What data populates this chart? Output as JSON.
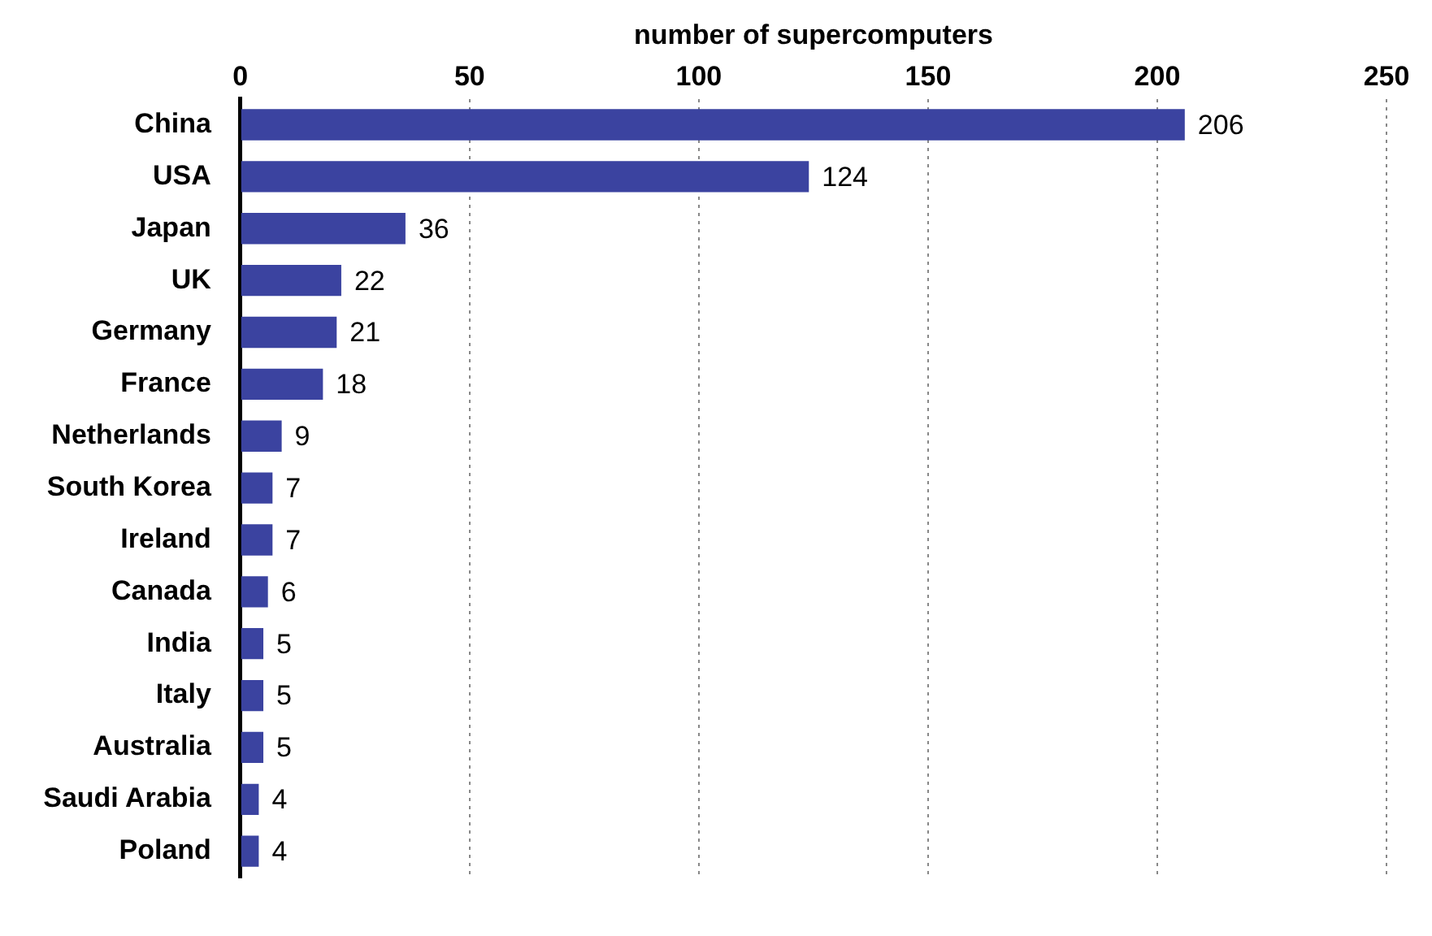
{
  "chart_data": {
    "type": "bar",
    "orientation": "horizontal",
    "xlabel": "number of supercomputers",
    "categories": [
      "China",
      "USA",
      "Japan",
      "UK",
      "Germany",
      "France",
      "Netherlands",
      "South Korea",
      "Ireland",
      "Canada",
      "India",
      "Italy",
      "Australia",
      "Saudi Arabia",
      "Poland"
    ],
    "values": [
      206,
      124,
      36,
      22,
      21,
      18,
      9,
      7,
      7,
      6,
      5,
      5,
      5,
      4,
      4
    ],
    "color": "#3b43a0",
    "xlim": [
      0,
      250
    ],
    "xticks": [
      0,
      50,
      100,
      150,
      200,
      250
    ],
    "grid": "x",
    "legend": false,
    "data_labels": true
  }
}
